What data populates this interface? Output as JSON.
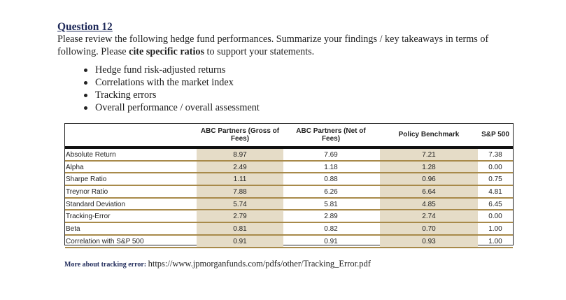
{
  "question": {
    "title": "Question 12",
    "line1_a": "Please review the following hedge fund performances. Summarize your findings / key takeaways in terms of",
    "line2_a": "following. Please ",
    "line2_bold": "cite specific ratios",
    "line2_b": " to support your statements."
  },
  "bullets": [
    "Hedge fund risk-adjusted returns",
    "Correlations with the market index",
    "Tracking errors",
    "Overall performance / overall assessment"
  ],
  "table": {
    "headers": [
      "ABC Partners (Gross of Fees)",
      "ABC Partners (Net of Fees)",
      "Policy Benchmark",
      "S&P 500"
    ],
    "rows": [
      {
        "label": "Absolute Return",
        "values": [
          "8.97",
          "7.69",
          "7.21",
          "7.38"
        ]
      },
      {
        "label": "Alpha",
        "values": [
          "2.49",
          "1.18",
          "1.28",
          "0.00"
        ]
      },
      {
        "label": "Sharpe Ratio",
        "values": [
          "1.11",
          "0.88",
          "0.96",
          "0.75"
        ]
      },
      {
        "label": "Treynor Ratio",
        "values": [
          "7.88",
          "6.26",
          "6.64",
          "4.81"
        ]
      },
      {
        "label": "Standard Deviation",
        "values": [
          "5.74",
          "5.81",
          "4.85",
          "6.45"
        ]
      },
      {
        "label": "Tracking-Error",
        "values": [
          "2.79",
          "2.89",
          "2.74",
          "0.00"
        ]
      },
      {
        "label": "Beta",
        "values": [
          "0.81",
          "0.82",
          "0.70",
          "1.00"
        ]
      },
      {
        "label": "Correlation with S&P 500",
        "values": [
          "0.91",
          "0.91",
          "0.93",
          "1.00"
        ]
      }
    ]
  },
  "footnote": {
    "label": "More about tracking error:",
    "url": "https://www.jpmorganfunds.com/pdfs/other/Tracking_Error.pdf"
  },
  "colors": {
    "shade": "#e5dcc7",
    "gold_rule": "#a88a4a",
    "title": "#1f2a5a"
  }
}
